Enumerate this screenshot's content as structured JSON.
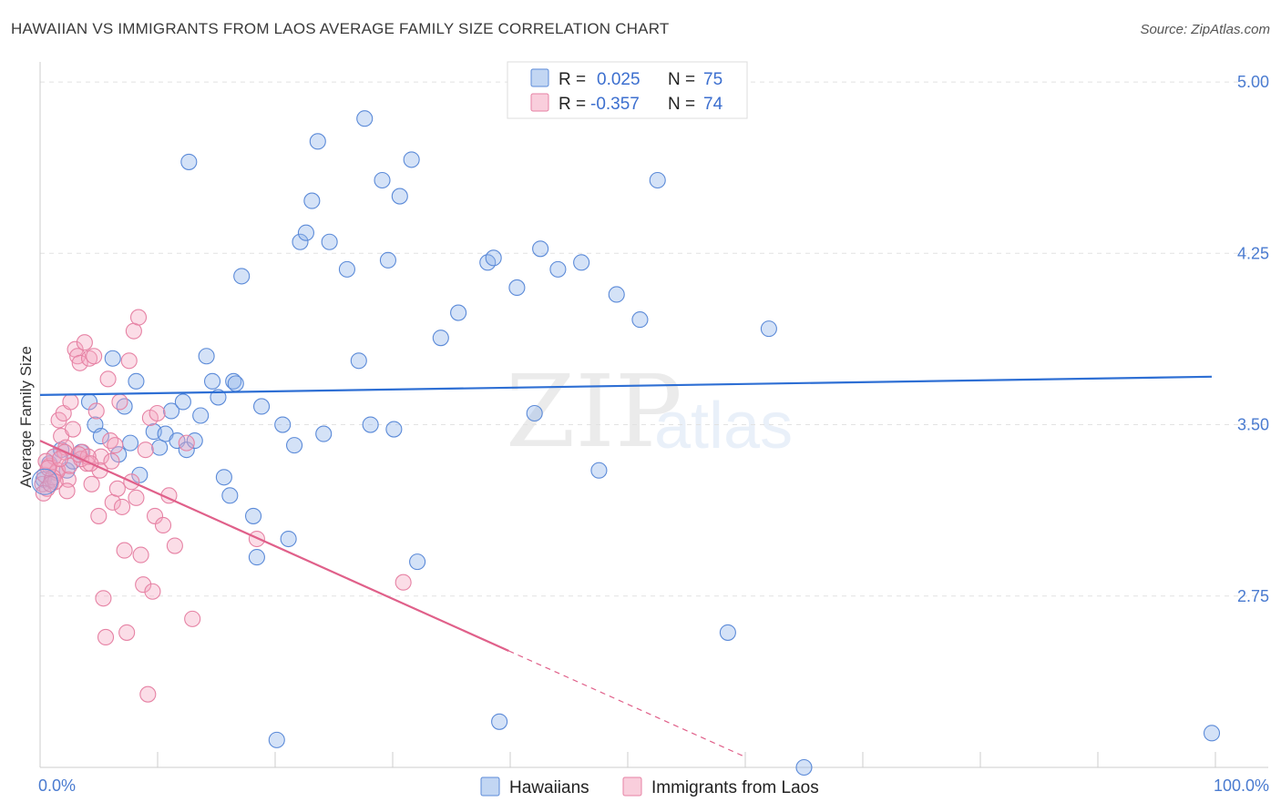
{
  "header": {
    "title": "HAWAIIAN VS IMMIGRANTS FROM LAOS AVERAGE FAMILY SIZE CORRELATION CHART",
    "source": "Source: ZipAtlas.com"
  },
  "watermark": {
    "zip": "ZIP",
    "atlas": "atlas"
  },
  "legend": {
    "rows": [
      {
        "r_label": "R =",
        "r_value": "0.025",
        "n_label": "N =",
        "n_value": "75",
        "color": "#8fb4ea"
      },
      {
        "r_label": "R =",
        "r_value": "-0.357",
        "n_label": "N =",
        "n_value": "74",
        "color": "#f4a6c0"
      }
    ]
  },
  "bottom_legend": [
    {
      "label": "Hawaiians",
      "color": "#8fb4ea"
    },
    {
      "label": "Immigrants from Laos",
      "color": "#f4a6c0"
    }
  ],
  "chart_data": {
    "type": "scatter",
    "ylabel": "Average Family Size",
    "xlim": [
      0,
      100
    ],
    "ylim": [
      2.0,
      5.08
    ],
    "x_tick_labels": [
      "0.0%",
      "100.0%"
    ],
    "y_ticks": [
      2.75,
      3.5,
      4.25,
      5.0
    ],
    "y_tick_labels": [
      "2.75",
      "3.50",
      "4.25",
      "5.00"
    ],
    "grid": "horizontal dashed",
    "legend_position": "top-center",
    "series": [
      {
        "name": "Hawaiians",
        "color": "#8fb4ea",
        "stroke": "#5b8ad8",
        "trend": {
          "x0": 0,
          "y0": 3.63,
          "x1": 100,
          "y1": 3.71,
          "color": "#2e6fd4"
        },
        "points": [
          [
            0.3,
            3.26
          ],
          [
            0.8,
            3.33
          ],
          [
            1.2,
            3.36
          ],
          [
            1.8,
            3.39
          ],
          [
            2.3,
            3.3
          ],
          [
            2.8,
            3.34
          ],
          [
            3.5,
            3.38
          ],
          [
            4.2,
            3.6
          ],
          [
            4.7,
            3.5
          ],
          [
            5.2,
            3.45
          ],
          [
            6.2,
            3.79
          ],
          [
            6.7,
            3.37
          ],
          [
            7.2,
            3.58
          ],
          [
            7.7,
            3.42
          ],
          [
            8.2,
            3.69
          ],
          [
            8.5,
            3.28
          ],
          [
            9.7,
            3.47
          ],
          [
            10.2,
            3.4
          ],
          [
            10.7,
            3.46
          ],
          [
            11.2,
            3.56
          ],
          [
            11.7,
            3.43
          ],
          [
            12.2,
            3.6
          ],
          [
            12.5,
            3.39
          ],
          [
            12.7,
            4.65
          ],
          [
            13.2,
            3.43
          ],
          [
            13.7,
            3.54
          ],
          [
            14.2,
            3.8
          ],
          [
            14.7,
            3.69
          ],
          [
            15.2,
            3.62
          ],
          [
            15.7,
            3.27
          ],
          [
            16.2,
            3.19
          ],
          [
            16.5,
            3.69
          ],
          [
            16.7,
            3.68
          ],
          [
            17.2,
            4.15
          ],
          [
            18.2,
            3.1
          ],
          [
            18.5,
            2.92
          ],
          [
            18.9,
            3.58
          ],
          [
            20.2,
            2.12
          ],
          [
            20.7,
            3.5
          ],
          [
            21.2,
            3.0
          ],
          [
            21.7,
            3.41
          ],
          [
            22.2,
            4.3
          ],
          [
            22.7,
            4.34
          ],
          [
            23.2,
            4.48
          ],
          [
            23.7,
            4.74
          ],
          [
            24.2,
            3.46
          ],
          [
            24.7,
            4.3
          ],
          [
            26.2,
            4.18
          ],
          [
            27.2,
            3.78
          ],
          [
            27.7,
            4.84
          ],
          [
            28.2,
            3.5
          ],
          [
            29.2,
            4.57
          ],
          [
            29.7,
            4.22
          ],
          [
            30.2,
            3.48
          ],
          [
            30.7,
            4.5
          ],
          [
            31.7,
            4.66
          ],
          [
            32.2,
            2.9
          ],
          [
            34.2,
            3.88
          ],
          [
            35.7,
            3.99
          ],
          [
            38.2,
            4.21
          ],
          [
            38.7,
            4.23
          ],
          [
            39.2,
            2.2
          ],
          [
            40.7,
            4.1
          ],
          [
            42.2,
            3.55
          ],
          [
            42.7,
            4.27
          ],
          [
            44.2,
            4.18
          ],
          [
            46.2,
            4.21
          ],
          [
            47.7,
            3.3
          ],
          [
            49.2,
            4.07
          ],
          [
            51.2,
            3.96
          ],
          [
            52.7,
            4.57
          ],
          [
            58.7,
            2.59
          ],
          [
            62.2,
            3.92
          ],
          [
            65.2,
            2.0
          ],
          [
            100,
            2.15
          ]
        ]
      },
      {
        "name": "Immigrants from Laos",
        "color": "#f4a6c0",
        "stroke": "#e682a4",
        "trend": {
          "x0": 0,
          "y0": 3.43,
          "x1": 40,
          "y1": 2.51,
          "dash_x1": 60,
          "dash_y1": 2.05,
          "color": "#e0608a"
        },
        "points": [
          [
            0.2,
            3.24
          ],
          [
            0.4,
            3.28
          ],
          [
            0.6,
            3.22
          ],
          [
            0.8,
            3.32
          ],
          [
            1.0,
            3.26
          ],
          [
            1.2,
            3.36
          ],
          [
            1.4,
            3.29
          ],
          [
            1.6,
            3.52
          ],
          [
            1.8,
            3.45
          ],
          [
            2.0,
            3.55
          ],
          [
            2.2,
            3.4
          ],
          [
            2.4,
            3.26
          ],
          [
            2.6,
            3.6
          ],
          [
            2.8,
            3.48
          ],
          [
            3.0,
            3.83
          ],
          [
            3.2,
            3.8
          ],
          [
            3.4,
            3.77
          ],
          [
            3.6,
            3.38
          ],
          [
            3.8,
            3.86
          ],
          [
            4.0,
            3.33
          ],
          [
            4.2,
            3.79
          ],
          [
            4.4,
            3.24
          ],
          [
            4.6,
            3.8
          ],
          [
            4.8,
            3.56
          ],
          [
            5.0,
            3.1
          ],
          [
            5.2,
            3.36
          ],
          [
            5.4,
            2.74
          ],
          [
            5.6,
            2.57
          ],
          [
            5.8,
            3.7
          ],
          [
            6.0,
            3.43
          ],
          [
            6.2,
            3.16
          ],
          [
            6.4,
            3.41
          ],
          [
            6.6,
            3.22
          ],
          [
            6.8,
            3.6
          ],
          [
            7.0,
            3.14
          ],
          [
            7.2,
            2.95
          ],
          [
            7.4,
            2.59
          ],
          [
            7.6,
            3.78
          ],
          [
            7.8,
            3.25
          ],
          [
            8.0,
            3.91
          ],
          [
            8.2,
            3.18
          ],
          [
            8.4,
            3.97
          ],
          [
            8.6,
            2.93
          ],
          [
            8.8,
            2.8
          ],
          [
            9.0,
            3.39
          ],
          [
            9.2,
            2.32
          ],
          [
            9.4,
            3.53
          ],
          [
            9.6,
            2.77
          ],
          [
            9.8,
            3.1
          ],
          [
            10.0,
            3.55
          ],
          [
            10.5,
            3.06
          ],
          [
            11.0,
            3.19
          ],
          [
            11.5,
            2.97
          ],
          [
            12.5,
            3.42
          ],
          [
            13.0,
            2.65
          ],
          [
            18.5,
            3.0
          ],
          [
            31.0,
            2.81
          ],
          [
            0.5,
            3.34
          ],
          [
            1.5,
            3.3
          ],
          [
            2.5,
            3.32
          ],
          [
            3.5,
            3.35
          ],
          [
            0.3,
            3.2
          ],
          [
            1.1,
            3.27
          ],
          [
            2.1,
            3.38
          ],
          [
            4.1,
            3.36
          ],
          [
            5.1,
            3.3
          ],
          [
            6.1,
            3.34
          ],
          [
            0.7,
            3.31
          ],
          [
            1.3,
            3.25
          ],
          [
            2.3,
            3.21
          ],
          [
            3.3,
            3.37
          ],
          [
            4.3,
            3.33
          ],
          [
            0.9,
            3.24
          ],
          [
            1.7,
            3.35
          ]
        ]
      }
    ]
  }
}
